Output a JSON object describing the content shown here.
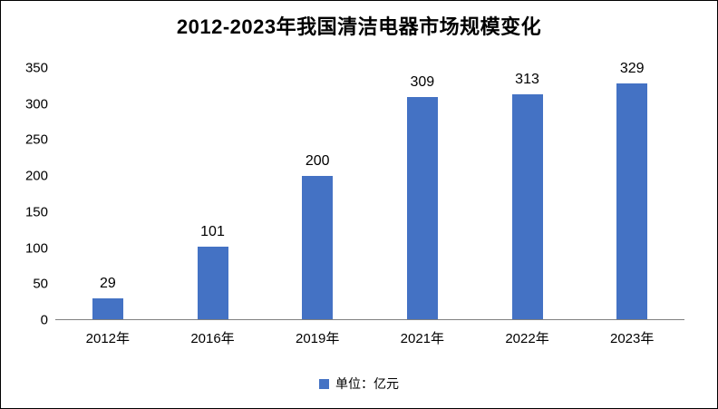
{
  "chart_data": {
    "type": "bar",
    "title": "2012-2023年我国清洁电器市场规模变化",
    "categories": [
      "2012年",
      "2016年",
      "2019年",
      "2021年",
      "2022年",
      "2023年"
    ],
    "values": [
      29,
      101,
      200,
      309,
      313,
      329
    ],
    "xlabel": "",
    "ylabel": "",
    "ylim": [
      0,
      350
    ],
    "y_ticks": [
      350,
      300,
      250,
      200,
      150,
      100,
      50,
      0
    ],
    "grid": false,
    "legend": "单位：亿元",
    "legend_position": "bottom",
    "bar_color": "#4472C4",
    "axis_color": "#808080",
    "text_color": "#000000",
    "border_color": "#000000"
  }
}
